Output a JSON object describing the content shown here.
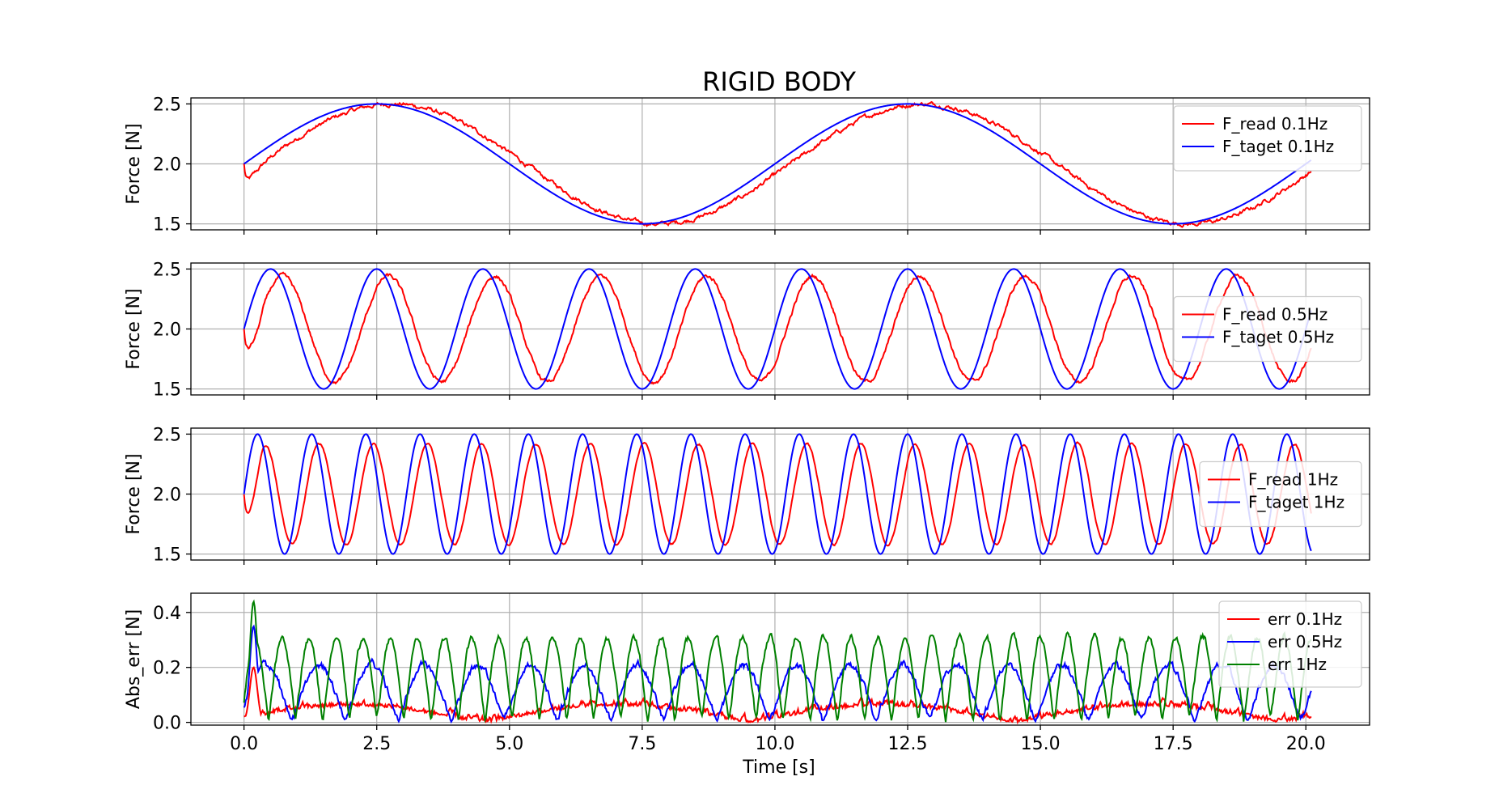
{
  "figure": {
    "title": "RIGID BODY",
    "xlabel": "Time [s]"
  },
  "chart_data": [
    {
      "type": "line",
      "ylabel": "Force [N]",
      "xlim": [
        -1.0,
        21.2
      ],
      "ylim": [
        1.45,
        2.55
      ],
      "xticks": [
        0.0,
        2.5,
        5.0,
        7.5,
        10.0,
        12.5,
        15.0,
        17.5,
        20.0
      ],
      "xtick_labels": [
        "0.0",
        "2.5",
        "5.0",
        "7.5",
        "10.0",
        "12.5",
        "15.0",
        "17.5",
        "20.0"
      ],
      "yticks": [
        1.5,
        2.0,
        2.5
      ],
      "ytick_labels": [
        "1.5",
        "2.0",
        "2.5"
      ],
      "grid": true,
      "legend_position": "upper right",
      "series": [
        {
          "name": "F_read 0.1Hz",
          "color": "#ff0000",
          "kind": "read",
          "freq": 0.1,
          "x_range": [
            0.0,
            20.1
          ],
          "center": 2.0,
          "amplitude": 0.5,
          "lag": 0.3,
          "noise": 0.02
        },
        {
          "name": "F_taget 0.1Hz",
          "color": "#0000ff",
          "kind": "target",
          "freq": 0.1,
          "x_range": [
            0.0,
            20.1
          ],
          "center": 2.0,
          "amplitude": 0.5
        }
      ]
    },
    {
      "type": "line",
      "ylabel": "Force [N]",
      "xlim": [
        -1.0,
        21.2
      ],
      "ylim": [
        1.45,
        2.55
      ],
      "xticks": [
        0.0,
        2.5,
        5.0,
        7.5,
        10.0,
        12.5,
        15.0,
        17.5,
        20.0
      ],
      "xtick_labels": [
        "0.0",
        "2.5",
        "5.0",
        "7.5",
        "10.0",
        "12.5",
        "15.0",
        "17.5",
        "20.0"
      ],
      "yticks": [
        1.5,
        2.0,
        2.5
      ],
      "ytick_labels": [
        "1.5",
        "2.0",
        "2.5"
      ],
      "grid": true,
      "legend_position": "center right",
      "series": [
        {
          "name": "F_read 0.5Hz",
          "color": "#ff0000",
          "kind": "read",
          "freq": 0.5,
          "x_range": [
            0.0,
            20.1
          ],
          "center": 2.0,
          "amplitude": 0.44,
          "lag": 0.22,
          "noise": 0.02
        },
        {
          "name": "F_taget 0.5Hz",
          "color": "#0000ff",
          "kind": "target",
          "freq": 0.5,
          "x_range": [
            0.0,
            20.1
          ],
          "center": 2.0,
          "amplitude": 0.5
        }
      ]
    },
    {
      "type": "line",
      "ylabel": "Force [N]",
      "xlim": [
        -1.0,
        21.2
      ],
      "ylim": [
        1.45,
        2.55
      ],
      "xticks": [
        0.0,
        2.5,
        5.0,
        7.5,
        10.0,
        12.5,
        15.0,
        17.5,
        20.0
      ],
      "xtick_labels": [
        "0.0",
        "2.5",
        "5.0",
        "7.5",
        "10.0",
        "12.5",
        "15.0",
        "17.5",
        "20.0"
      ],
      "yticks": [
        1.5,
        2.0,
        2.5
      ],
      "ytick_labels": [
        "1.5",
        "2.0",
        "2.5"
      ],
      "grid": true,
      "legend_position": "center right",
      "series": [
        {
          "name": "F_read 1Hz",
          "color": "#ff0000",
          "kind": "read",
          "freq": 0.98,
          "x_range": [
            0.0,
            20.1
          ],
          "center": 2.0,
          "amplitude": 0.42,
          "lag": 0.14,
          "noise": 0.01
        },
        {
          "name": "F_taget 1Hz",
          "color": "#0000ff",
          "kind": "target",
          "freq": 0.98,
          "x_range": [
            0.0,
            20.1
          ],
          "center": 2.0,
          "amplitude": 0.5
        }
      ]
    },
    {
      "type": "line",
      "ylabel": "Abs_err [N]",
      "xlim": [
        -1.0,
        21.2
      ],
      "ylim": [
        -0.01,
        0.47
      ],
      "xticks": [
        0.0,
        2.5,
        5.0,
        7.5,
        10.0,
        12.5,
        15.0,
        17.5,
        20.0
      ],
      "xtick_labels": [
        "0.0",
        "2.5",
        "5.0",
        "7.5",
        "10.0",
        "12.5",
        "15.0",
        "17.5",
        "20.0"
      ],
      "yticks": [
        0.0,
        0.2,
        0.4
      ],
      "ytick_labels": [
        "0.0",
        "0.2",
        "0.4"
      ],
      "grid": true,
      "legend_position": "upper right",
      "series": [
        {
          "name": "err 0.1Hz",
          "color": "#ff0000",
          "kind": "err",
          "freq": 0.1,
          "x_range": [
            0.0,
            20.1
          ],
          "peak": 0.06,
          "noise": 0.02,
          "start_peak": 0.2
        },
        {
          "name": "err 0.5Hz",
          "color": "#0000ff",
          "kind": "err",
          "freq": 0.5,
          "x_range": [
            0.0,
            20.1
          ],
          "peak": 0.2,
          "noise": 0.02,
          "start_peak": 0.35
        },
        {
          "name": "err 1Hz",
          "color": "#008000",
          "kind": "err",
          "freq": 0.98,
          "x_range": [
            0.0,
            20.1
          ],
          "peak": 0.3,
          "noise": 0.02,
          "start_peak": 0.44
        }
      ]
    }
  ]
}
